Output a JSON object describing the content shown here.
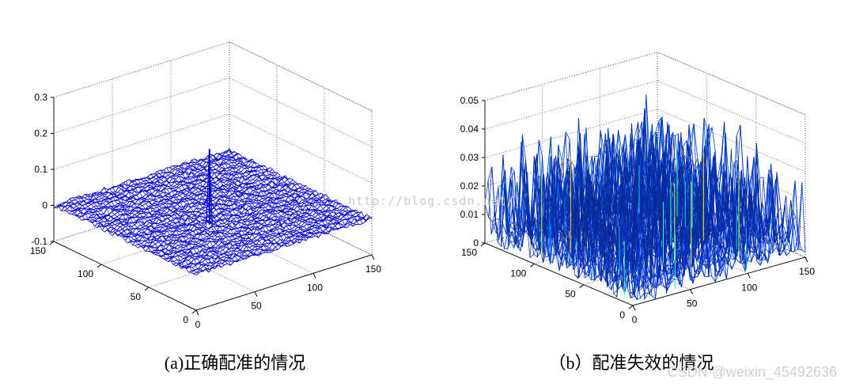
{
  "figure": {
    "watermark_center": "http://blog.csdn.net/",
    "watermark_corner": "CSDN @weixin_45492636",
    "colors": {
      "low": "#0000c8",
      "mid": "#00c8ff",
      "high": "#ff3000"
    }
  },
  "chart_data": [
    {
      "type": "surface3d",
      "caption": "(a)正确配准的情况",
      "x_range": [
        0,
        150
      ],
      "y_range": [
        0,
        150
      ],
      "z_range": [
        -0.1,
        0.3
      ],
      "x_ticks": [
        "0",
        "50",
        "100",
        "150"
      ],
      "y_ticks": [
        "0",
        "50",
        "100",
        "150"
      ],
      "z_ticks": [
        "-0.1",
        "0",
        "0.1",
        "0.2",
        "0.3"
      ],
      "grid": true,
      "peak": {
        "x": 60,
        "y": 60,
        "z": 0.21
      },
      "noise_level": 0.006,
      "colormap": "jet"
    },
    {
      "type": "surface3d",
      "caption": "（b）配准失效的情况",
      "x_range": [
        0,
        150
      ],
      "y_range": [
        0,
        150
      ],
      "z_range": [
        0,
        0.05
      ],
      "x_ticks": [
        "0",
        "50",
        "100",
        "150"
      ],
      "y_ticks": [
        "0",
        "50",
        "100",
        "150"
      ],
      "z_ticks": [
        "0",
        "0.01",
        "0.02",
        "0.03",
        "0.04",
        "0.05"
      ],
      "grid": true,
      "peak": {
        "x": 75,
        "y": 75,
        "z": 0.049
      },
      "noise_level": 0.02,
      "colormap": "jet"
    }
  ]
}
